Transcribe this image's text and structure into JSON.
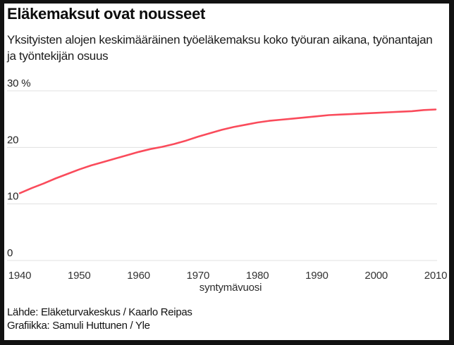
{
  "header": {
    "title": "Eläkemaksut ovat nousseet",
    "subtitle": "Yksityisten alojen keskimääräinen työeläkemaksu koko työuran aikana, työnantajan ja työntekijän osuus"
  },
  "footer": {
    "source": "Lähde: Eläketurvakeskus / Kaarlo Reipas",
    "credit": "Grafiikka: Samuli Huttunen / Yle"
  },
  "colors": {
    "frame": "#121212",
    "background": "#ffffff",
    "gridline": "#e0e0e0",
    "line": "#fa4b5b",
    "text": "#1c1c1c"
  },
  "chart_data": {
    "type": "line",
    "title": "Eläkemaksut ovat nousseet",
    "xlabel": "syntymävuosi",
    "ylabel": "%",
    "xlim": [
      1940,
      2010
    ],
    "ylim": [
      0,
      30
    ],
    "grid": true,
    "legend": "none",
    "x_ticks": [
      1940,
      1950,
      1960,
      1970,
      1980,
      1990,
      2000,
      2010
    ],
    "y_ticks": [
      {
        "value": 0,
        "label": "0"
      },
      {
        "value": 10,
        "label": "10"
      },
      {
        "value": 20,
        "label": "20"
      },
      {
        "value": 30,
        "label": "30 %"
      }
    ],
    "series": [
      {
        "name": "työeläkemaksu",
        "color": "#fa4b5b",
        "x": [
          1940,
          1942,
          1944,
          1946,
          1948,
          1950,
          1952,
          1954,
          1956,
          1958,
          1960,
          1962,
          1964,
          1966,
          1968,
          1970,
          1972,
          1974,
          1976,
          1978,
          1980,
          1982,
          1984,
          1986,
          1988,
          1990,
          1992,
          1994,
          1996,
          1998,
          2000,
          2002,
          2004,
          2006,
          2008,
          2010
        ],
        "y": [
          11.9,
          12.8,
          13.6,
          14.5,
          15.3,
          16.1,
          16.8,
          17.4,
          18.0,
          18.6,
          19.2,
          19.7,
          20.1,
          20.6,
          21.2,
          21.9,
          22.5,
          23.1,
          23.6,
          24.0,
          24.4,
          24.7,
          24.9,
          25.1,
          25.3,
          25.5,
          25.7,
          25.8,
          25.9,
          26.0,
          26.1,
          26.2,
          26.3,
          26.4,
          26.6,
          26.7
        ]
      }
    ]
  }
}
